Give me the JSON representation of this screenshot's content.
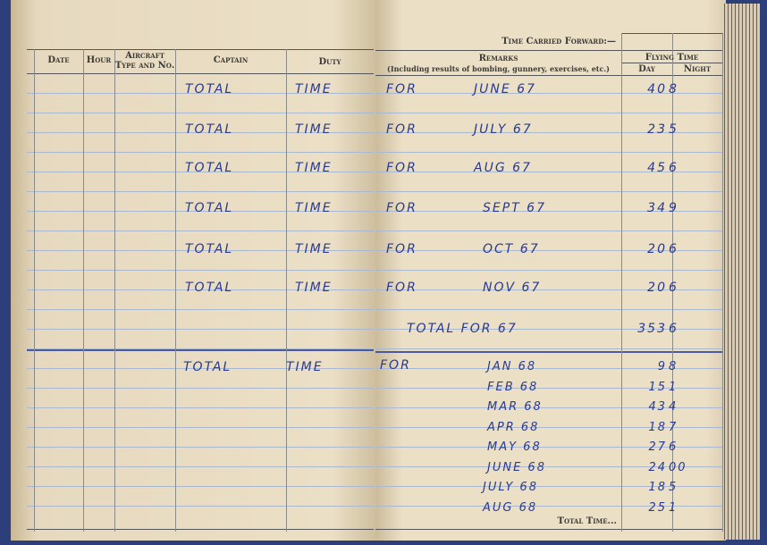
{
  "left_page": {
    "headers": {
      "date": "Date",
      "hour": "Hour",
      "aircraft": "Aircraft Type and No.",
      "captain": "Captain",
      "duty": "Duty"
    },
    "rows": [
      {
        "captain": "TOTAL",
        "duty": "TIME"
      },
      {
        "captain": "TOTAL",
        "duty": "TIME"
      },
      {
        "captain": "TOTAL",
        "duty": "TIME"
      },
      {
        "captain": "TOTAL",
        "duty": "TIME"
      },
      {
        "captain": "TOTAL",
        "duty": "TIME"
      },
      {
        "captain": "TOTAL",
        "duty": "TIME"
      },
      {
        "captain": "TOTAL",
        "duty": "TIME"
      }
    ]
  },
  "right_page": {
    "carried_forward_label": "Time Carried Forward:—",
    "remarks_header": "Remarks",
    "remarks_subheader": "(Including results of bombing, gunnery, exercises, etc.)",
    "flying_time_header": "Flying Time",
    "day_header": "Day",
    "night_header": "Night",
    "entries_1967": [
      {
        "for": "FOR",
        "month": "JUNE 67",
        "hours": "40",
        "tenths": "8"
      },
      {
        "for": "FOR",
        "month": "JULY 67",
        "hours": "23",
        "tenths": "5"
      },
      {
        "for": "FOR",
        "month": "AUG 67",
        "hours": "45",
        "tenths": "6"
      },
      {
        "for": "FOR",
        "month": "SEPT 67",
        "hours": "34",
        "tenths": "9"
      },
      {
        "for": "FOR",
        "month": "OCT 67",
        "hours": "20",
        "tenths": "6"
      },
      {
        "for": "FOR",
        "month": "NOV 67",
        "hours": "20",
        "tenths": "6"
      }
    ],
    "total_1967": {
      "label": "TOTAL FOR 67",
      "hours": "353",
      "tenths": "6"
    },
    "for_1968": "FOR",
    "entries_1968": [
      {
        "month": "JAN 68",
        "hours": "9",
        "tenths": "8"
      },
      {
        "month": "FEB 68",
        "hours": "15",
        "tenths": "1"
      },
      {
        "month": "MAR 68",
        "hours": "43",
        "tenths": "4"
      },
      {
        "month": "APR 68",
        "hours": "18",
        "tenths": "7"
      },
      {
        "month": "MAY 68",
        "hours": "27",
        "tenths": "6"
      },
      {
        "month": "JUNE 68",
        "hours": "24",
        "tenths": "00"
      },
      {
        "month": "JULY 68",
        "hours": "18",
        "tenths": "5"
      },
      {
        "month": "AUG 68",
        "hours": "25",
        "tenths": "1"
      }
    ],
    "total_time_label": "Total Time..."
  },
  "colors": {
    "ink": "#2a3b8f",
    "paper": "#ebdfc6",
    "cover": "#2d3f7a"
  }
}
